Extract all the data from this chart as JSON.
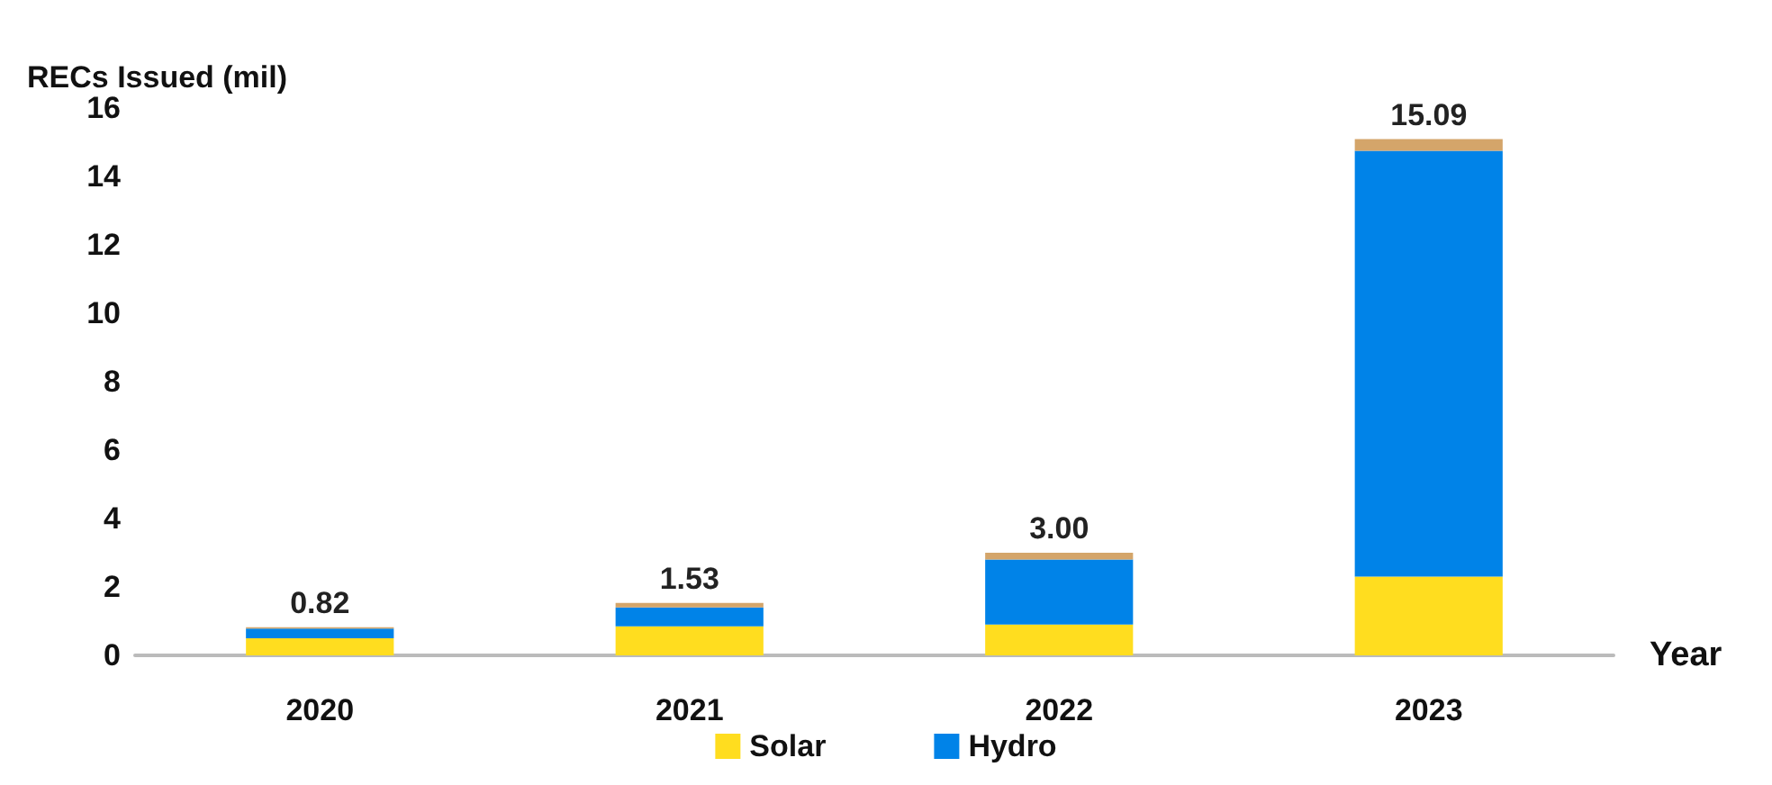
{
  "chart_data": {
    "type": "bar",
    "stacked": true,
    "ylabel": "RECs Issued (mil)",
    "xlabel": "Year",
    "categories": [
      "2020",
      "2021",
      "2022",
      "2023"
    ],
    "series": [
      {
        "name": "Solar",
        "color": "#ffdd1f",
        "values": [
          0.5,
          0.85,
          0.9,
          2.3
        ]
      },
      {
        "name": "Hydro",
        "color": "#0083e8",
        "values": [
          0.28,
          0.55,
          1.9,
          12.45
        ]
      },
      {
        "color": "#d4a56a",
        "values": [
          0.04,
          0.13,
          0.2,
          0.34
        ]
      }
    ],
    "totals": [
      "0.82",
      "1.53",
      "3.00",
      "15.09"
    ],
    "ylim": [
      0,
      16
    ],
    "yticks": [
      0,
      2,
      4,
      6,
      8,
      10,
      12,
      14,
      16
    ],
    "grid": false,
    "legend": "bottom"
  }
}
